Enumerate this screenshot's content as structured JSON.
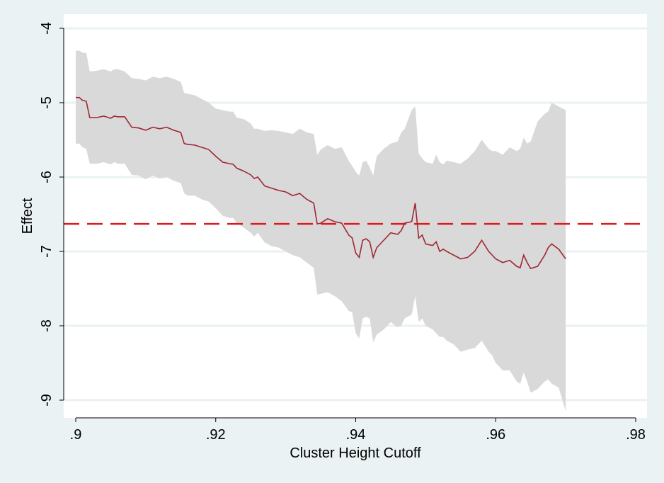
{
  "chart_data": {
    "type": "line",
    "title": "",
    "xlabel": "Cluster Height Cutoff",
    "ylabel": "Effect",
    "xlim": [
      0.9,
      0.98
    ],
    "ylim": [
      -9,
      -4
    ],
    "x_ticks": [
      0.9,
      0.92,
      0.94,
      0.96,
      0.98
    ],
    "x_tick_labels": [
      ".9",
      ".92",
      ".94",
      ".96",
      ".98"
    ],
    "y_ticks": [
      -4,
      -5,
      -6,
      -7,
      -8,
      -9
    ],
    "y_tick_labels": [
      "-4",
      "-5",
      "-6",
      "-7",
      "-8",
      "-9"
    ],
    "grid": "horizontal",
    "legend": "none",
    "reference_line": {
      "y": -6.63,
      "style": "dashed",
      "color": "#e0191f"
    },
    "colors": {
      "background": "#eaf2f3",
      "plot_area": "#ffffff",
      "gridline": "#eaf2f3",
      "band": "#d9d9d9",
      "line": "#9e2733"
    },
    "series": [
      {
        "x": [
          0.9,
          0.9005,
          0.901,
          0.9015,
          0.902,
          0.903,
          0.904,
          0.905,
          0.9055,
          0.906,
          0.907,
          0.908,
          0.909,
          0.91,
          0.911,
          0.912,
          0.913,
          0.914,
          0.915,
          0.9155,
          0.916,
          0.917,
          0.918,
          0.919,
          0.92,
          0.921,
          0.922,
          0.9225,
          0.923,
          0.924,
          0.925,
          0.9255,
          0.926,
          0.927,
          0.928,
          0.929,
          0.93,
          0.931,
          0.932,
          0.933,
          0.934,
          0.9345,
          0.935,
          0.936,
          0.937,
          0.938,
          0.939,
          0.9395,
          0.94,
          0.9405,
          0.941,
          0.9415,
          0.942,
          0.9425,
          0.943,
          0.944,
          0.945,
          0.946,
          0.9465,
          0.947,
          0.948,
          0.9485,
          0.949,
          0.9495,
          0.95,
          0.951,
          0.9515,
          0.952,
          0.9525,
          0.953,
          0.954,
          0.955,
          0.956,
          0.957,
          0.958,
          0.959,
          0.9595,
          0.96,
          0.961,
          0.962,
          0.963,
          0.9635,
          0.964,
          0.9645,
          0.965,
          0.966,
          0.967,
          0.9675,
          0.968,
          0.969,
          0.97
        ],
        "y": [
          -4.93,
          -4.93,
          -4.97,
          -4.98,
          -5.2,
          -5.2,
          -5.18,
          -5.21,
          -5.18,
          -5.19,
          -5.19,
          -5.33,
          -5.34,
          -5.37,
          -5.33,
          -5.35,
          -5.33,
          -5.37,
          -5.4,
          -5.55,
          -5.56,
          -5.57,
          -5.6,
          -5.63,
          -5.72,
          -5.8,
          -5.82,
          -5.83,
          -5.88,
          -5.92,
          -5.97,
          -6.02,
          -6.0,
          -6.12,
          -6.15,
          -6.18,
          -6.2,
          -6.25,
          -6.22,
          -6.3,
          -6.35,
          -6.63,
          -6.62,
          -6.56,
          -6.6,
          -6.62,
          -6.78,
          -6.82,
          -7.02,
          -7.08,
          -6.85,
          -6.83,
          -6.87,
          -7.08,
          -6.95,
          -6.85,
          -6.75,
          -6.77,
          -6.72,
          -6.62,
          -6.6,
          -6.35,
          -6.82,
          -6.78,
          -6.9,
          -6.92,
          -6.87,
          -7.0,
          -6.97,
          -7.0,
          -7.05,
          -7.1,
          -7.08,
          -7.0,
          -6.85,
          -7.0,
          -7.05,
          -7.1,
          -7.15,
          -7.12,
          -7.2,
          -7.22,
          -7.05,
          -7.15,
          -7.23,
          -7.2,
          -7.05,
          -6.95,
          -6.9,
          -6.97,
          -7.1
        ]
      }
    ],
    "band": {
      "x": [
        0.9,
        0.9005,
        0.901,
        0.9015,
        0.902,
        0.903,
        0.904,
        0.905,
        0.9055,
        0.906,
        0.907,
        0.908,
        0.909,
        0.91,
        0.911,
        0.912,
        0.913,
        0.914,
        0.915,
        0.9155,
        0.916,
        0.917,
        0.918,
        0.919,
        0.92,
        0.921,
        0.922,
        0.9225,
        0.923,
        0.924,
        0.925,
        0.9255,
        0.926,
        0.927,
        0.928,
        0.929,
        0.93,
        0.931,
        0.932,
        0.933,
        0.934,
        0.9345,
        0.935,
        0.936,
        0.937,
        0.938,
        0.939,
        0.9395,
        0.94,
        0.9405,
        0.941,
        0.9415,
        0.942,
        0.9425,
        0.943,
        0.944,
        0.945,
        0.946,
        0.9465,
        0.947,
        0.948,
        0.9485,
        0.949,
        0.9495,
        0.95,
        0.951,
        0.9515,
        0.952,
        0.9525,
        0.953,
        0.954,
        0.955,
        0.956,
        0.957,
        0.958,
        0.959,
        0.9595,
        0.96,
        0.961,
        0.962,
        0.963,
        0.9635,
        0.964,
        0.9645,
        0.965,
        0.966,
        0.967,
        0.9675,
        0.968,
        0.969,
        0.97
      ],
      "upper": [
        -4.3,
        -4.3,
        -4.33,
        -4.33,
        -4.58,
        -4.57,
        -4.55,
        -4.58,
        -4.55,
        -4.55,
        -4.58,
        -4.67,
        -4.68,
        -4.7,
        -4.65,
        -4.67,
        -4.65,
        -4.68,
        -4.72,
        -4.87,
        -4.88,
        -4.9,
        -4.95,
        -5.0,
        -5.08,
        -5.1,
        -5.12,
        -5.12,
        -5.2,
        -5.22,
        -5.28,
        -5.35,
        -5.35,
        -5.38,
        -5.37,
        -5.38,
        -5.4,
        -5.42,
        -5.35,
        -5.4,
        -5.42,
        -5.7,
        -5.63,
        -5.57,
        -5.62,
        -5.6,
        -5.78,
        -5.85,
        -5.93,
        -5.98,
        -5.8,
        -5.78,
        -5.87,
        -5.98,
        -5.72,
        -5.62,
        -5.55,
        -5.52,
        -5.4,
        -5.35,
        -5.1,
        -5.05,
        -5.68,
        -5.75,
        -5.8,
        -5.82,
        -5.7,
        -5.8,
        -5.83,
        -5.78,
        -5.8,
        -5.82,
        -5.75,
        -5.65,
        -5.5,
        -5.62,
        -5.65,
        -5.65,
        -5.7,
        -5.6,
        -5.65,
        -5.62,
        -5.47,
        -5.55,
        -5.52,
        -5.25,
        -5.15,
        -5.12,
        -5.0,
        -5.05,
        -5.1
      ],
      "lower": [
        -5.55,
        -5.55,
        -5.6,
        -5.62,
        -5.82,
        -5.82,
        -5.8,
        -5.83,
        -5.8,
        -5.82,
        -5.82,
        -5.97,
        -5.98,
        -6.03,
        -5.98,
        -6.02,
        -6.0,
        -6.05,
        -6.08,
        -6.22,
        -6.25,
        -6.25,
        -6.3,
        -6.33,
        -6.42,
        -6.52,
        -6.55,
        -6.55,
        -6.62,
        -6.68,
        -6.75,
        -6.8,
        -6.75,
        -6.88,
        -6.93,
        -6.95,
        -7.0,
        -7.05,
        -7.08,
        -7.15,
        -7.22,
        -7.58,
        -7.57,
        -7.55,
        -7.6,
        -7.67,
        -7.8,
        -7.82,
        -8.1,
        -8.17,
        -7.9,
        -7.88,
        -7.9,
        -8.22,
        -8.12,
        -8.05,
        -7.95,
        -8.02,
        -8.0,
        -7.9,
        -7.85,
        -7.6,
        -7.95,
        -7.9,
        -8.0,
        -8.05,
        -8.1,
        -8.15,
        -8.15,
        -8.2,
        -8.25,
        -8.35,
        -8.32,
        -8.3,
        -8.2,
        -8.35,
        -8.4,
        -8.5,
        -8.6,
        -8.6,
        -8.75,
        -8.78,
        -8.63,
        -8.75,
        -8.9,
        -8.85,
        -8.75,
        -8.72,
        -8.78,
        -8.83,
        -9.15
      ]
    }
  }
}
